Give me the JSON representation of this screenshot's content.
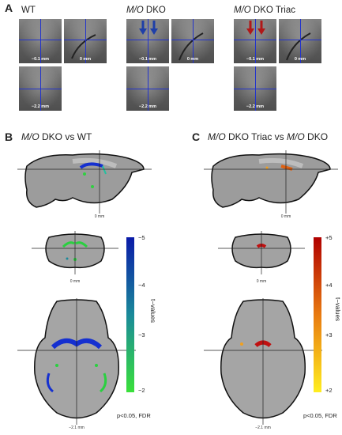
{
  "panel_a": {
    "label": "A",
    "groups": [
      {
        "title_italic": "",
        "title_rest": "WT",
        "coronal_mm": "−0.1 mm",
        "sagittal_mm": "0 mm",
        "axial_mm": "−2.2 mm"
      },
      {
        "title_italic": "M/O",
        "title_rest": " DKO",
        "coronal_mm": "−0.1 mm",
        "sagittal_mm": "0 mm",
        "axial_mm": "−2.2 mm"
      },
      {
        "title_italic": "M/O",
        "title_rest": " DKO Triac",
        "coronal_mm": "−0.1 mm",
        "sagittal_mm": "0 mm",
        "axial_mm": "−2.2 mm"
      }
    ],
    "arrow_colors": {
      "dko": "#1f3fa8",
      "triac": "#b01818"
    }
  },
  "panel_b": {
    "label": "B",
    "title_italic": "M/O",
    "title_rest": " DKO vs WT",
    "sag_caption": "0 mm",
    "cor_caption": "0 mm",
    "ax_caption": "−2.1 mm",
    "colorbar": {
      "ticks": [
        "−5",
        "−4",
        "−3",
        "−2"
      ],
      "label": "t−values",
      "top_color": "#0a1aa8",
      "mid_color": "#1a8a9a",
      "bottom_color": "#3ae03a"
    },
    "pvalue": "p<0.05, FDR"
  },
  "panel_c": {
    "label": "C",
    "title_italic_1": "M/O",
    "title_mid": " DKO Triac vs ",
    "title_italic_2": "M/O",
    "title_rest": " DKO",
    "sag_caption": "0 mm",
    "cor_caption": "0 mm",
    "ax_caption": "−2.1 mm",
    "colorbar": {
      "ticks": [
        "+5",
        "+4",
        "+3",
        "+2"
      ],
      "label": "t−values",
      "top_color": "#b00000",
      "mid_color": "#e87a10",
      "bottom_color": "#ffee20"
    },
    "pvalue": "p<0.05, FDR"
  }
}
